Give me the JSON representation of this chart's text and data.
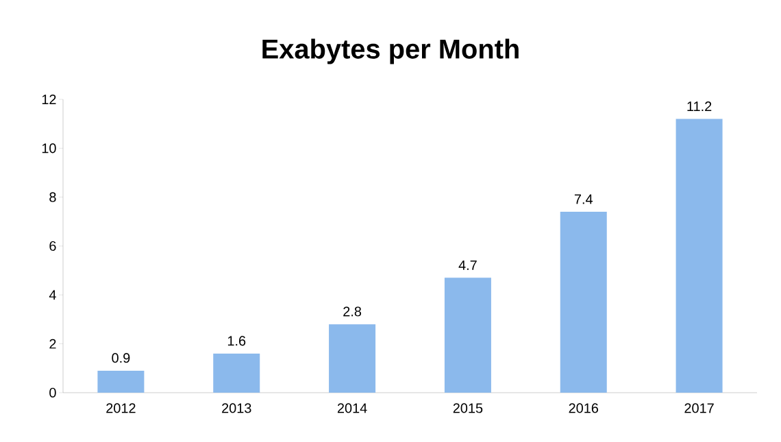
{
  "chart_data": {
    "type": "bar",
    "title": "Exabytes per Month",
    "categories": [
      "2012",
      "2013",
      "2014",
      "2015",
      "2016",
      "2017"
    ],
    "values": [
      0.9,
      1.6,
      2.8,
      4.7,
      7.4,
      11.2
    ],
    "color": "#8bb9ec",
    "ylim": [
      0,
      12
    ],
    "yticks": [
      0,
      2,
      4,
      6,
      8,
      10,
      12
    ],
    "data_labels": true
  }
}
